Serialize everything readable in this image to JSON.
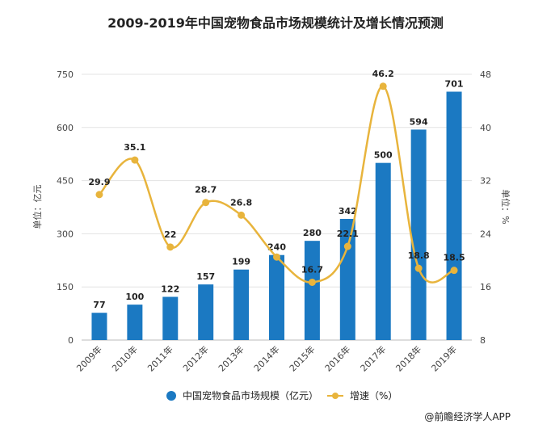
{
  "chart_data": {
    "type": "bar",
    "title": "2009-2019年中国宠物食品市场规模统计及增长情况预测",
    "categories": [
      "2009年",
      "2010年",
      "2011年",
      "2012年",
      "2013年",
      "2014年",
      "2015年",
      "2016年",
      "2017年",
      "2018年",
      "2019年"
    ],
    "series": [
      {
        "name": "中国宠物食品市场规模（亿元）",
        "type": "bar",
        "axis": "left",
        "color": "#1b79c2",
        "values": [
          77,
          100,
          122,
          157,
          199,
          240,
          280,
          342,
          500,
          594,
          701
        ],
        "labels": [
          "77",
          "100",
          "122",
          "157",
          "199",
          "240",
          "280",
          "342",
          "500",
          "594",
          "701"
        ]
      },
      {
        "name": "增速（%）",
        "type": "line",
        "axis": "right",
        "color": "#e8b43c",
        "values": [
          29.9,
          35.1,
          22,
          28.7,
          26.8,
          20.5,
          16.7,
          22.1,
          46.2,
          18.8,
          18.5
        ],
        "labels": [
          "29.9",
          "35.1",
          "22",
          "28.7",
          "26.8",
          "",
          "16.7",
          "22.1",
          "46.2",
          "18.8",
          "18.5"
        ]
      }
    ],
    "y_left": {
      "label": "单位：亿元",
      "ylim": [
        0,
        750
      ],
      "ticks": [
        "0",
        "150",
        "300",
        "450",
        "600",
        "750"
      ]
    },
    "y_right": {
      "label": "单位：%",
      "ylim": [
        8,
        48
      ],
      "ticks": [
        "8",
        "16",
        "24",
        "32",
        "40",
        "48"
      ]
    },
    "grid": true,
    "legend": "bottom-center",
    "source": "@前瞻经济学人APP"
  }
}
